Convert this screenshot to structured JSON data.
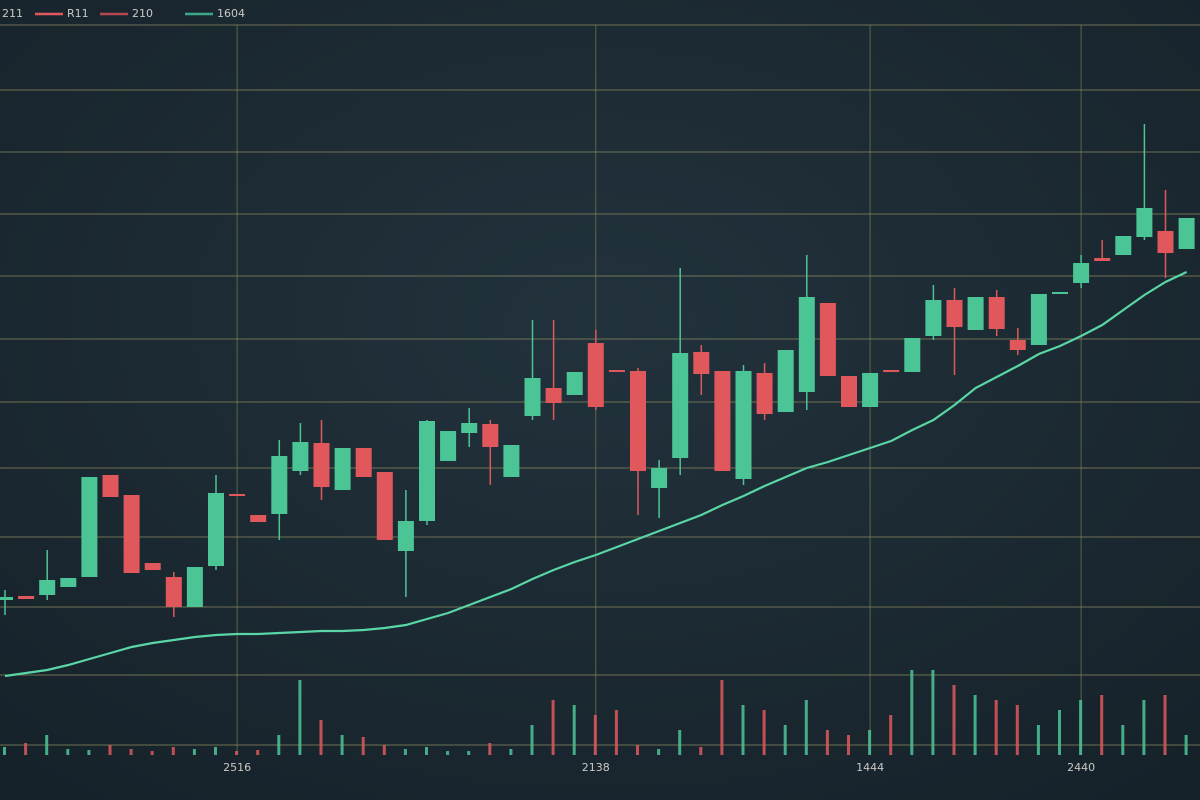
{
  "chart_data": {
    "type": "candlestick",
    "legend": [
      {
        "name": "211"
      },
      {
        "name": "R11",
        "color": "#e0585b"
      },
      {
        "name": "210",
        "color": "#b9484e"
      },
      {
        "name": "1604",
        "color": "#3aa88a"
      }
    ],
    "categories": [
      null,
      null,
      null,
      null,
      null,
      null,
      null,
      null,
      null,
      null,
      null,
      "2516",
      null,
      null,
      null,
      null,
      null,
      null,
      null,
      null,
      null,
      null,
      null,
      null,
      null,
      null,
      null,
      null,
      "2138",
      null,
      null,
      null,
      null,
      null,
      null,
      null,
      null,
      null,
      null,
      null,
      null,
      "1444",
      null,
      null,
      null,
      null,
      null,
      null,
      null,
      null,
      null,
      "2440",
      null,
      null,
      null,
      null,
      null
    ],
    "candles": [
      {
        "o": 200,
        "h": 210,
        "l": 185,
        "c": 203
      },
      {
        "o": 204,
        "h": 204,
        "l": 201,
        "c": 201
      },
      {
        "o": 205,
        "h": 250,
        "l": 200,
        "c": 220
      },
      {
        "o": 213,
        "h": 222,
        "l": 213,
        "c": 222
      },
      {
        "o": 223,
        "h": 323,
        "l": 223,
        "c": 323
      },
      {
        "o": 325,
        "h": 325,
        "l": 303,
        "c": 303
      },
      {
        "o": 305,
        "h": 305,
        "l": 227,
        "c": 227
      },
      {
        "o": 237,
        "h": 237,
        "l": 230,
        "c": 230
      },
      {
        "o": 223,
        "h": 228,
        "l": 183,
        "c": 193
      },
      {
        "o": 193,
        "h": 233,
        "l": 193,
        "c": 233
      },
      {
        "o": 234,
        "h": 325,
        "l": 230,
        "c": 307
      },
      {
        "o": 306,
        "h": 306,
        "l": 304,
        "c": 304
      },
      {
        "o": 285,
        "h": 285,
        "l": 278,
        "c": 278
      },
      {
        "o": 286,
        "h": 360,
        "l": 260,
        "c": 344
      },
      {
        "o": 329,
        "h": 377,
        "l": 325,
        "c": 358
      },
      {
        "o": 357,
        "h": 380,
        "l": 300,
        "c": 313
      },
      {
        "o": 310,
        "h": 352,
        "l": 310,
        "c": 352
      },
      {
        "o": 352,
        "h": 352,
        "l": 323,
        "c": 323
      },
      {
        "o": 328,
        "h": 328,
        "l": 260,
        "c": 260
      },
      {
        "o": 249,
        "h": 310,
        "l": 203,
        "c": 279
      },
      {
        "o": 279,
        "h": 380,
        "l": 275,
        "c": 379
      },
      {
        "o": 339,
        "h": 369,
        "l": 339,
        "c": 369
      },
      {
        "o": 367,
        "h": 392,
        "l": 353,
        "c": 377
      },
      {
        "o": 376,
        "h": 380,
        "l": 315,
        "c": 353
      },
      {
        "o": 323,
        "h": 355,
        "l": 323,
        "c": 355
      },
      {
        "o": 384,
        "h": 480,
        "l": 380,
        "c": 422
      },
      {
        "o": 412,
        "h": 480,
        "l": 380,
        "c": 397
      },
      {
        "o": 405,
        "h": 428,
        "l": 405,
        "c": 428
      },
      {
        "o": 457,
        "h": 470,
        "l": 390,
        "c": 393
      },
      {
        "o": 430,
        "h": 430,
        "l": 428,
        "c": 428
      },
      {
        "o": 429,
        "h": 432,
        "l": 285,
        "c": 329
      },
      {
        "o": 312,
        "h": 340,
        "l": 282,
        "c": 332
      },
      {
        "o": 342,
        "h": 532,
        "l": 325,
        "c": 447
      },
      {
        "o": 448,
        "h": 455,
        "l": 405,
        "c": 426
      },
      {
        "o": 429,
        "h": 429,
        "l": 329,
        "c": 329
      },
      {
        "o": 321,
        "h": 435,
        "l": 315,
        "c": 429
      },
      {
        "o": 427,
        "h": 437,
        "l": 380,
        "c": 386
      },
      {
        "o": 388,
        "h": 450,
        "l": 388,
        "c": 450
      },
      {
        "o": 408,
        "h": 545,
        "l": 390,
        "c": 503
      },
      {
        "o": 497,
        "h": 497,
        "l": 424,
        "c": 424
      },
      {
        "o": 424,
        "h": 424,
        "l": 393,
        "c": 393
      },
      {
        "o": 393,
        "h": 427,
        "l": 393,
        "c": 427
      },
      {
        "o": 430,
        "h": 430,
        "l": 428,
        "c": 428
      },
      {
        "o": 428,
        "h": 462,
        "l": 428,
        "c": 462
      },
      {
        "o": 464,
        "h": 515,
        "l": 460,
        "c": 500
      },
      {
        "o": 500,
        "h": 512,
        "l": 425,
        "c": 473
      },
      {
        "o": 470,
        "h": 503,
        "l": 470,
        "c": 503
      },
      {
        "o": 503,
        "h": 510,
        "l": 464,
        "c": 471
      },
      {
        "o": 460,
        "h": 472,
        "l": 445,
        "c": 450
      },
      {
        "o": 455,
        "h": 506,
        "l": 455,
        "c": 506
      },
      {
        "o": 506,
        "h": 508,
        "l": 506,
        "c": 508
      },
      {
        "o": 517,
        "h": 545,
        "l": 512,
        "c": 537
      },
      {
        "o": 542,
        "h": 560,
        "l": 539,
        "c": 539
      },
      {
        "o": 545,
        "h": 564,
        "l": 545,
        "c": 564
      },
      {
        "o": 563,
        "h": 676,
        "l": 560,
        "c": 592
      },
      {
        "o": 569,
        "h": 610,
        "l": 522,
        "c": 547
      },
      {
        "o": 551,
        "h": 582,
        "l": 551,
        "c": 582
      }
    ],
    "moving_average": {
      "color": "#5ad6a6",
      "values": [
        124,
        127,
        130,
        135,
        141,
        147,
        153,
        157,
        160,
        163,
        165,
        166,
        166,
        167,
        168,
        169,
        169,
        170,
        172,
        175,
        181,
        187,
        195,
        203,
        211,
        221,
        230,
        238,
        245,
        253,
        261,
        269,
        277,
        285,
        295,
        304,
        314,
        323,
        332,
        338,
        345,
        352,
        359,
        370,
        380,
        395,
        412,
        423,
        434,
        446,
        454,
        464,
        475,
        490,
        505,
        518,
        528
      ]
    },
    "volume": {
      "axis": "y2",
      "values": [
        8,
        12,
        20,
        6,
        5,
        10,
        6,
        4,
        8,
        6,
        8,
        4,
        5,
        20,
        75,
        35,
        20,
        18,
        10,
        6,
        8,
        4,
        4,
        12,
        6,
        30,
        55,
        50,
        40,
        45,
        10,
        6,
        25,
        8,
        75,
        50,
        45,
        30,
        55,
        25,
        20,
        25,
        40,
        85,
        85,
        70,
        60,
        55,
        50,
        30,
        45,
        55,
        60,
        30,
        55,
        60,
        20
      ]
    },
    "up_color": "#4cc596",
    "down_color": "#e0585b",
    "ylim": [
      0,
      800
    ],
    "y2lim": [
      -45,
      755
    ],
    "grid": true,
    "ygrid": [
      775,
      710,
      648,
      586,
      524,
      461,
      398,
      332,
      263,
      193,
      125,
      55
    ]
  }
}
